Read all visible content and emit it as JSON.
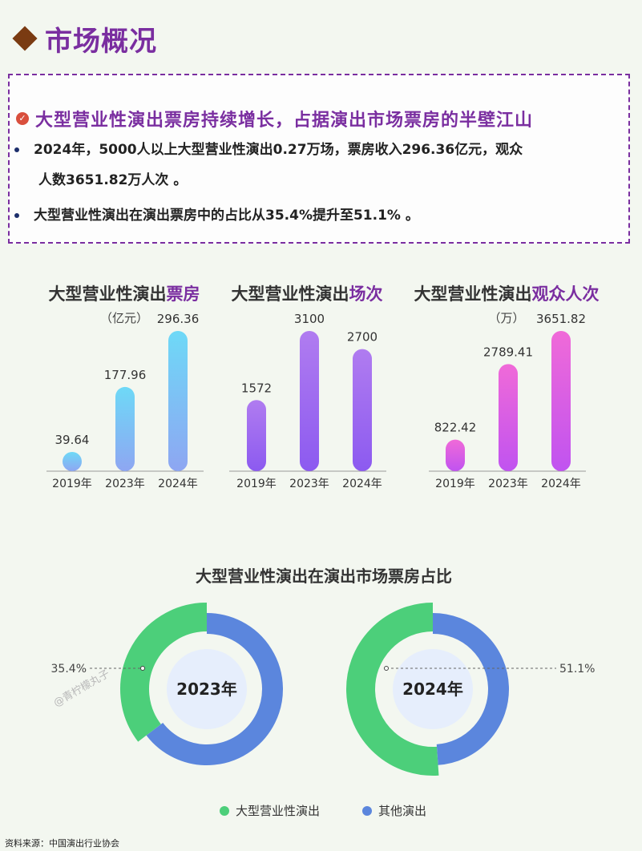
{
  "page": {
    "title": "市场概况",
    "headline": "大型营业性演出票房持续增长，占据演出市场票房的半壁江山",
    "bullet1_line1": "2024年，5000人以上大型营业性演出0.27万场，票房收入296.36亿元，观众",
    "bullet1_line2": "人数3651.82万人次 。",
    "bullet2": "大型营业性演出在演出票房中的占比从35.4%提升至51.1% 。",
    "source": "资料来源：中国演出行业协会",
    "watermark": "@青柠檬丸子"
  },
  "colors": {
    "title": "#7a2ea0",
    "diamond": "#7a3b12",
    "green": "#4ccf7a",
    "blue": "#5b86dd",
    "center": "#e6eefc"
  },
  "chart_data": [
    {
      "type": "bar",
      "title_prefix": "大型营业性演出",
      "title_highlight": "票房",
      "unit": "（亿元）",
      "categories": [
        "2019年",
        "2023年",
        "2024年"
      ],
      "values": [
        39.64,
        177.96,
        296.36
      ],
      "value_labels": [
        "39.64",
        "177.96",
        "296.36"
      ],
      "gradient": [
        "#8ea6f2",
        "#6ed9f7"
      ]
    },
    {
      "type": "bar",
      "title_prefix": "大型营业性演出",
      "title_highlight": "场次",
      "unit": "",
      "categories": [
        "2019年",
        "2023年",
        "2024年"
      ],
      "values": [
        1572,
        3100,
        2700
      ],
      "value_labels": [
        "1572",
        "3100",
        "2700"
      ],
      "gradient": [
        "#8c5af0",
        "#b07cf0"
      ]
    },
    {
      "type": "bar",
      "title_prefix": "大型营业性演出",
      "title_highlight": "观众人次",
      "unit": "（万）",
      "categories": [
        "2019年",
        "2023年",
        "2024年"
      ],
      "values": [
        822.42,
        2789.41,
        3651.82
      ],
      "value_labels": [
        "822.42",
        "2789.41",
        "3651.82"
      ],
      "gradient": [
        "#c053f0",
        "#f06ad8"
      ]
    },
    {
      "type": "pie",
      "title": "大型营业性演出在演出市场票房占比",
      "legend": [
        "大型营业性演出",
        "其他演出"
      ],
      "donuts": [
        {
          "label": "2023年",
          "share": 35.4,
          "share_label": "35.4%"
        },
        {
          "label": "2024年",
          "share": 51.1,
          "share_label": "51.1%"
        }
      ]
    }
  ]
}
